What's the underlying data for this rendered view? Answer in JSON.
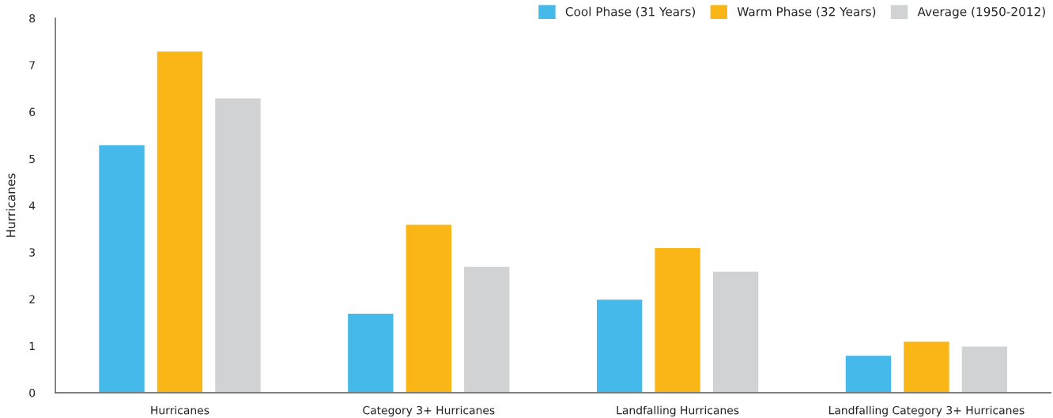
{
  "chart_data": {
    "type": "bar",
    "ylabel": "Hurricanes",
    "categories": [
      "Hurricanes",
      "Category 3+ Hurricanes",
      "Landfalling Hurricanes",
      "Landfalling Category 3+ Hurricanes"
    ],
    "series": [
      {
        "name": "Cool Phase (31 Years)",
        "color": "#45b9ea",
        "values": [
          5.3,
          1.7,
          2.0,
          0.8
        ]
      },
      {
        "name": "Warm Phase (32 Years)",
        "color": "#fab617",
        "values": [
          7.3,
          3.6,
          3.1,
          1.1
        ]
      },
      {
        "name": "Average (1950-2012)",
        "color": "#d1d2d4",
        "values": [
          6.3,
          2.7,
          2.6,
          1.0
        ]
      }
    ],
    "ylim": [
      0,
      8
    ],
    "yticks": [
      0,
      1,
      2,
      3,
      4,
      5,
      6,
      7,
      8
    ],
    "grid": false,
    "legend": "top right"
  }
}
